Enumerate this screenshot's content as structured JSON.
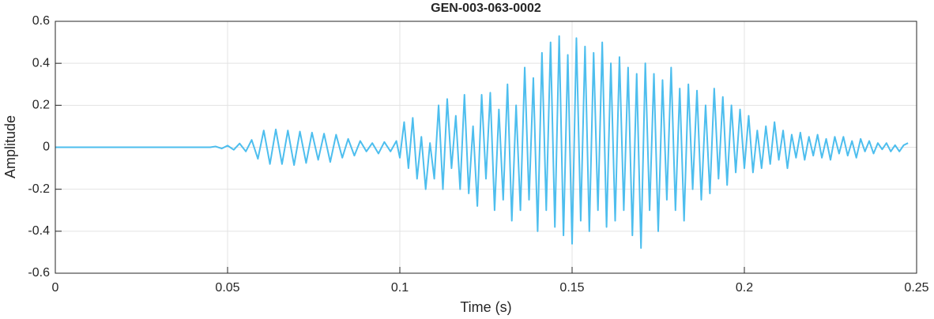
{
  "chart_data": {
    "type": "line",
    "title": "GEN-003-063-0002",
    "xlabel": "Time (s)",
    "ylabel": "Amplitude",
    "color": "#4DBEEE",
    "grid": true,
    "xlim": [
      0,
      0.25
    ],
    "xticks": [
      0,
      0.05,
      0.1,
      0.15,
      0.2,
      0.25
    ],
    "ylim": [
      -0.6,
      0.6
    ],
    "yticks": [
      -0.6,
      -0.4,
      -0.2,
      0,
      0.2,
      0.4,
      0.6
    ],
    "x": [
      0,
      0.02,
      0.04,
      0.045,
      0.0465,
      0.0483,
      0.05,
      0.0518,
      0.0535,
      0.0553,
      0.057,
      0.0588,
      0.0605,
      0.0623,
      0.064,
      0.0658,
      0.0675,
      0.0693,
      0.071,
      0.0728,
      0.0745,
      0.0763,
      0.078,
      0.0798,
      0.0815,
      0.0833,
      0.085,
      0.0868,
      0.0885,
      0.0903,
      0.092,
      0.0938,
      0.0955,
      0.0973,
      0.099,
      0.1,
      0.10125,
      0.1025,
      0.10375,
      0.105,
      0.10625,
      0.1075,
      0.10875,
      0.11,
      0.11125,
      0.1125,
      0.11375,
      0.115,
      0.11625,
      0.1175,
      0.11875,
      0.12,
      0.12125,
      0.1225,
      0.12375,
      0.125,
      0.12625,
      0.1275,
      0.12875,
      0.13,
      0.13125,
      0.1325,
      0.13375,
      0.135,
      0.13625,
      0.1375,
      0.13875,
      0.14,
      0.14125,
      0.1425,
      0.14375,
      0.145,
      0.14625,
      0.1475,
      0.14875,
      0.15,
      0.15125,
      0.1525,
      0.15375,
      0.155,
      0.15625,
      0.1575,
      0.15875,
      0.16,
      0.16125,
      0.1625,
      0.16375,
      0.165,
      0.16625,
      0.1675,
      0.16875,
      0.17,
      0.17125,
      0.1725,
      0.17375,
      0.175,
      0.17625,
      0.1775,
      0.17875,
      0.18,
      0.18125,
      0.1825,
      0.18375,
      0.185,
      0.18625,
      0.1875,
      0.18875,
      0.19,
      0.19125,
      0.1925,
      0.19375,
      0.195,
      0.19625,
      0.1975,
      0.19875,
      0.2,
      0.20125,
      0.2025,
      0.20375,
      0.205,
      0.20625,
      0.2075,
      0.20875,
      0.21,
      0.21125,
      0.2125,
      0.21375,
      0.215,
      0.21625,
      0.2175,
      0.21875,
      0.22,
      0.22125,
      0.2225,
      0.22375,
      0.225,
      0.22625,
      0.2275,
      0.22875,
      0.23,
      0.23125,
      0.2325,
      0.23375,
      0.235,
      0.23625,
      0.2375,
      0.23875,
      0.24,
      0.24125,
      0.2425,
      0.24375,
      0.245,
      0.24625,
      0.2475
    ],
    "values": [
      0,
      0,
      0,
      0,
      0.004,
      -0.006,
      0.008,
      -0.012,
      0.018,
      -0.02,
      0.035,
      -0.055,
      0.08,
      -0.08,
      0.085,
      -0.08,
      0.08,
      -0.085,
      0.075,
      -0.075,
      0.07,
      -0.06,
      0.065,
      -0.07,
      0.06,
      -0.05,
      0.04,
      -0.04,
      0.03,
      -0.02,
      0.02,
      -0.03,
      0.025,
      -0.02,
      0.03,
      -0.05,
      0.12,
      -0.1,
      0.14,
      -0.15,
      0.05,
      -0.2,
      0.02,
      -0.15,
      0.2,
      -0.2,
      0.23,
      -0.1,
      0.15,
      -0.2,
      0.25,
      -0.22,
      0.1,
      -0.28,
      0.25,
      -0.15,
      0.26,
      -0.3,
      0.18,
      -0.25,
      0.3,
      -0.35,
      0.2,
      -0.3,
      0.38,
      -0.25,
      0.33,
      -0.4,
      0.45,
      -0.3,
      0.5,
      -0.38,
      0.53,
      -0.42,
      0.44,
      -0.46,
      0.52,
      -0.35,
      0.48,
      -0.4,
      0.45,
      -0.3,
      0.5,
      -0.38,
      0.4,
      -0.35,
      0.43,
      -0.3,
      0.38,
      -0.42,
      0.35,
      -0.48,
      0.4,
      -0.3,
      0.35,
      -0.4,
      0.32,
      -0.25,
      0.38,
      -0.3,
      0.28,
      -0.35,
      0.3,
      -0.2,
      0.27,
      -0.25,
      0.2,
      -0.22,
      0.28,
      -0.15,
      0.24,
      -0.18,
      0.2,
      -0.12,
      0.18,
      -0.1,
      0.15,
      -0.12,
      0.08,
      -0.1,
      0.1,
      -0.08,
      0.12,
      -0.06,
      0.08,
      -0.1,
      0.06,
      -0.05,
      0.07,
      -0.06,
      0.05,
      -0.04,
      0.06,
      -0.05,
      0.04,
      -0.06,
      0.05,
      -0.03,
      0.05,
      -0.04,
      0.03,
      -0.05,
      0.04,
      -0.02,
      0.03,
      -0.03,
      0.02,
      -0.01,
      0.02,
      -0.02,
      0.01,
      -0.02,
      0.01,
      0.02
    ]
  }
}
